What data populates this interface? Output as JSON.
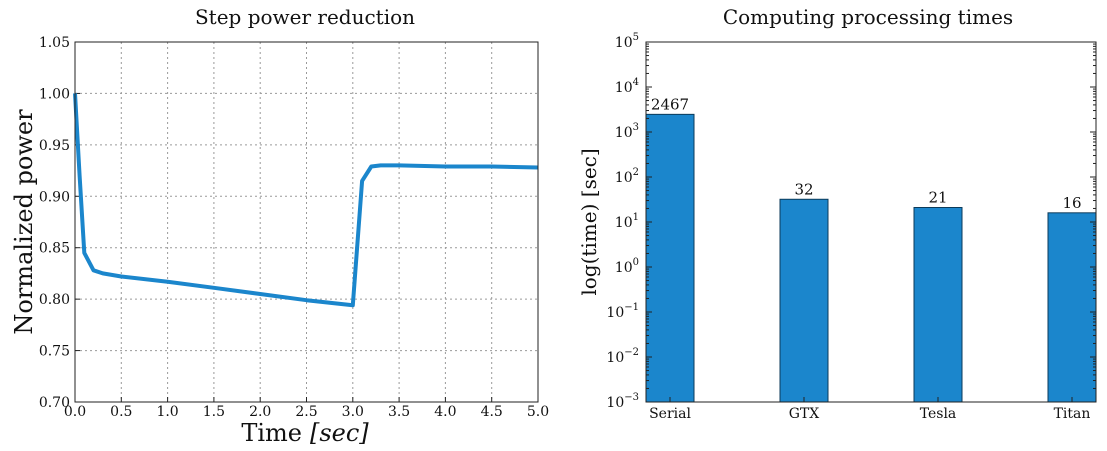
{
  "colors": {
    "accent": "#1b86cc",
    "bar": "#1b86cc",
    "bar_edge": "#0b3a5a"
  },
  "chart_data": [
    {
      "type": "line",
      "title": "Step power reduction",
      "xlabel": "Time",
      "xlabel_unit": "[sec]",
      "ylabel": "Normalized power",
      "xlim": [
        0,
        5
      ],
      "ylim": [
        0.7,
        1.05
      ],
      "xticks": [
        "0.0",
        "0.5",
        "1.0",
        "1.5",
        "2.0",
        "2.5",
        "3.0",
        "3.5",
        "4.0",
        "4.5",
        "5.0"
      ],
      "yticks": [
        "0.70",
        "0.75",
        "0.80",
        "0.85",
        "0.90",
        "0.95",
        "1.00",
        "1.05"
      ],
      "grid": true,
      "series": [
        {
          "x": [
            0.0,
            0.05,
            0.1,
            0.2,
            0.3,
            0.5,
            1.0,
            1.5,
            2.0,
            2.5,
            3.0,
            3.1,
            3.2,
            3.3,
            3.5,
            4.0,
            4.5,
            5.0
          ],
          "y": [
            1.0,
            0.92,
            0.845,
            0.828,
            0.825,
            0.822,
            0.817,
            0.811,
            0.805,
            0.799,
            0.794,
            0.915,
            0.929,
            0.93,
            0.93,
            0.929,
            0.929,
            0.928
          ]
        }
      ]
    },
    {
      "type": "bar",
      "title": "Computing processing times",
      "ylabel": "log(time) [sec]",
      "yscale": "log",
      "ylim": [
        0.001,
        100000
      ],
      "yticks": [
        {
          "base": "10",
          "exp": "−3",
          "value": 0.001
        },
        {
          "base": "10",
          "exp": "−2",
          "value": 0.01
        },
        {
          "base": "10",
          "exp": "−1",
          "value": 0.1
        },
        {
          "base": "10",
          "exp": "0",
          "value": 1
        },
        {
          "base": "10",
          "exp": "1",
          "value": 10
        },
        {
          "base": "10",
          "exp": "2",
          "value": 100
        },
        {
          "base": "10",
          "exp": "3",
          "value": 1000
        },
        {
          "base": "10",
          "exp": "4",
          "value": 10000
        },
        {
          "base": "10",
          "exp": "5",
          "value": 100000
        }
      ],
      "categories": [
        "Serial",
        "GTX",
        "Tesla",
        "Titan"
      ],
      "values": [
        2467,
        32,
        21,
        16
      ],
      "data_labels": [
        "2467",
        "32",
        "21",
        "16"
      ]
    }
  ]
}
